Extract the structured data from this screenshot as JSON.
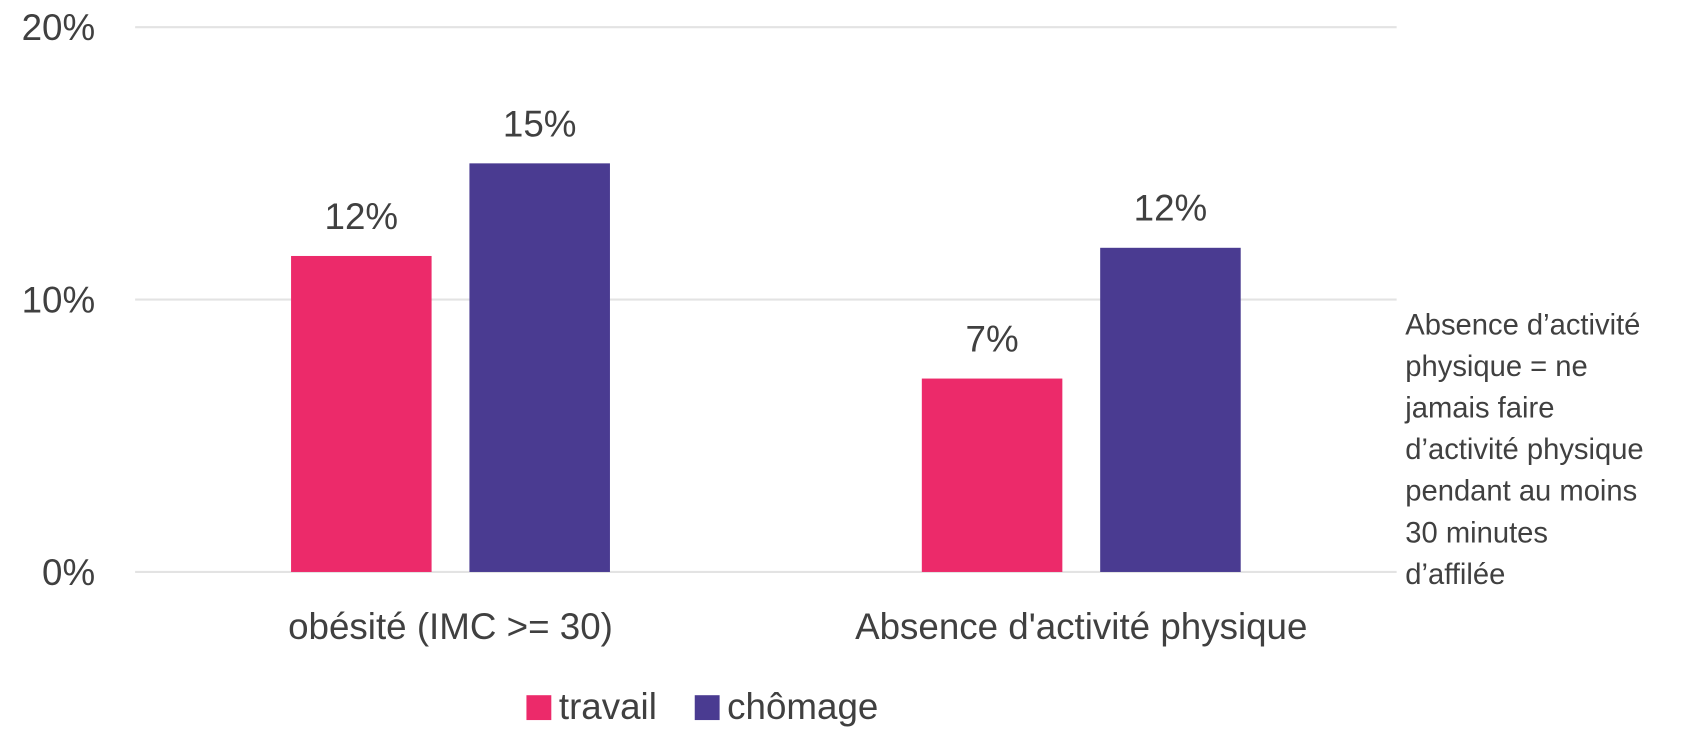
{
  "chart_data": {
    "type": "bar",
    "categories": [
      "obésité (IMC >= 30)",
      "Absence d'activité physique"
    ],
    "series": [
      {
        "name": "travail",
        "color": "#ec2a6a",
        "values": [
          11.6,
          7.1
        ],
        "value_labels": [
          "12%",
          "7%"
        ]
      },
      {
        "name": "chômage",
        "color": "#4a3b91",
        "values": [
          15,
          11.9
        ],
        "value_labels": [
          "15%",
          "12%"
        ]
      }
    ],
    "ylim": [
      0,
      20
    ],
    "yticks": [
      {
        "value": 0,
        "label": "0%"
      },
      {
        "value": 10,
        "label": "10%"
      },
      {
        "value": 20,
        "label": "20%"
      }
    ],
    "grid": true,
    "legend": "bottom",
    "annotation": [
      "Absence d’activité",
      "physique = ne",
      "jamais faire",
      "d’activité physique",
      "pendant au moins",
      "30 minutes",
      "d’affilée"
    ]
  }
}
